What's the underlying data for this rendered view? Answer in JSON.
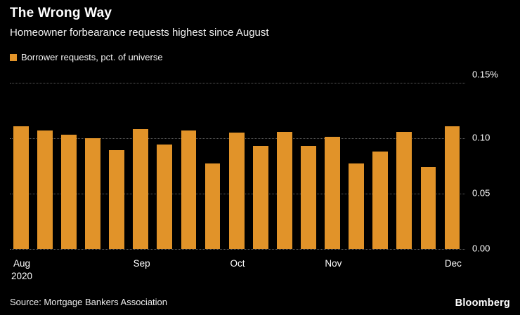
{
  "header": {
    "title": "The Wrong Way",
    "subtitle": "Homeowner forbearance requests highest since August"
  },
  "legend": {
    "label": "Borrower requests, pct. of universe",
    "swatch_color": "#E19329"
  },
  "chart_data": {
    "type": "bar",
    "title": "The Wrong Way",
    "subtitle": "Homeowner forbearance requests highest since August",
    "series_name": "Borrower requests, pct. of universe",
    "values": [
      0.111,
      0.107,
      0.103,
      0.1,
      0.089,
      0.108,
      0.094,
      0.107,
      0.077,
      0.105,
      0.093,
      0.106,
      0.093,
      0.101,
      0.077,
      0.088,
      0.106,
      0.074,
      0.111
    ],
    "ylim": [
      0,
      0.15
    ],
    "yticks": [
      {
        "value": 0.15,
        "label": "0.15%"
      },
      {
        "value": 0.1,
        "label": "0.10"
      },
      {
        "value": 0.05,
        "label": "0.05"
      },
      {
        "value": 0.0,
        "label": "0.00"
      }
    ],
    "x_axis_labels": [
      {
        "label": "Aug",
        "sub": "2020",
        "bar_index": 0
      },
      {
        "label": "Sep",
        "sub": "",
        "bar_index": 5
      },
      {
        "label": "Oct",
        "sub": "",
        "bar_index": 9
      },
      {
        "label": "Nov",
        "sub": "",
        "bar_index": 13
      },
      {
        "label": "Dec",
        "sub": "",
        "bar_index": 18
      }
    ],
    "bar_color": "#E19329",
    "grid": true,
    "legend_position": "top-left",
    "axis_side": "right"
  },
  "footer": {
    "source": "Source: Mortgage Bankers Association",
    "brand": "Bloomberg"
  }
}
